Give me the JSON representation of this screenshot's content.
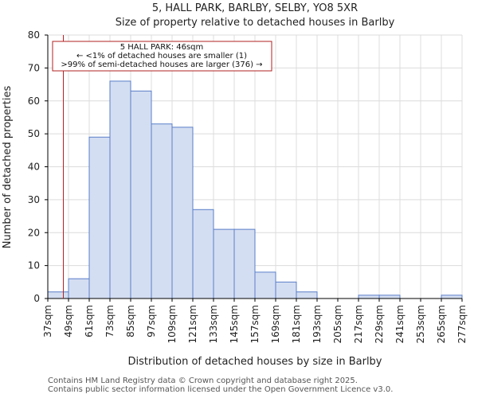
{
  "chart_data": {
    "type": "bar",
    "title": [
      "5, HALL PARK, BARLBY, SELBY, YO8 5XR",
      "Size of property relative to detached houses in Barlby"
    ],
    "xlabel": "Distribution of detached houses by size in Barlby",
    "ylabel": "Number of detached properties",
    "ylim": [
      0,
      80
    ],
    "yticks": [
      0,
      10,
      20,
      30,
      40,
      50,
      60,
      70,
      80
    ],
    "bin_width": 12,
    "bin_start": 37,
    "bin_labels": [
      "37sqm",
      "49sqm",
      "61sqm",
      "73sqm",
      "85sqm",
      "97sqm",
      "109sqm",
      "121sqm",
      "133sqm",
      "145sqm",
      "157sqm",
      "169sqm",
      "181sqm",
      "193sqm",
      "205sqm",
      "217sqm",
      "229sqm",
      "241sqm",
      "253sqm",
      "265sqm",
      "277sqm"
    ],
    "values": [
      2,
      6,
      49,
      66,
      63,
      53,
      52,
      27,
      21,
      21,
      8,
      5,
      2,
      0,
      0,
      1,
      1,
      0,
      0,
      1
    ],
    "marker": {
      "x": 46,
      "color": "#b22222",
      "annotation": [
        "5 HALL PARK: 46sqm",
        "← <1% of detached houses are smaller (1)",
        ">99% of semi-detached houses are larger (376) →"
      ]
    },
    "bar_fill": "#d4def2",
    "bar_edge": "#5a7ec8",
    "grid": true
  },
  "footer": {
    "line1": "Contains HM Land Registry data © Crown copyright and database right 2025.",
    "line2": "Contains public sector information licensed under the Open Government Licence v3.0."
  }
}
